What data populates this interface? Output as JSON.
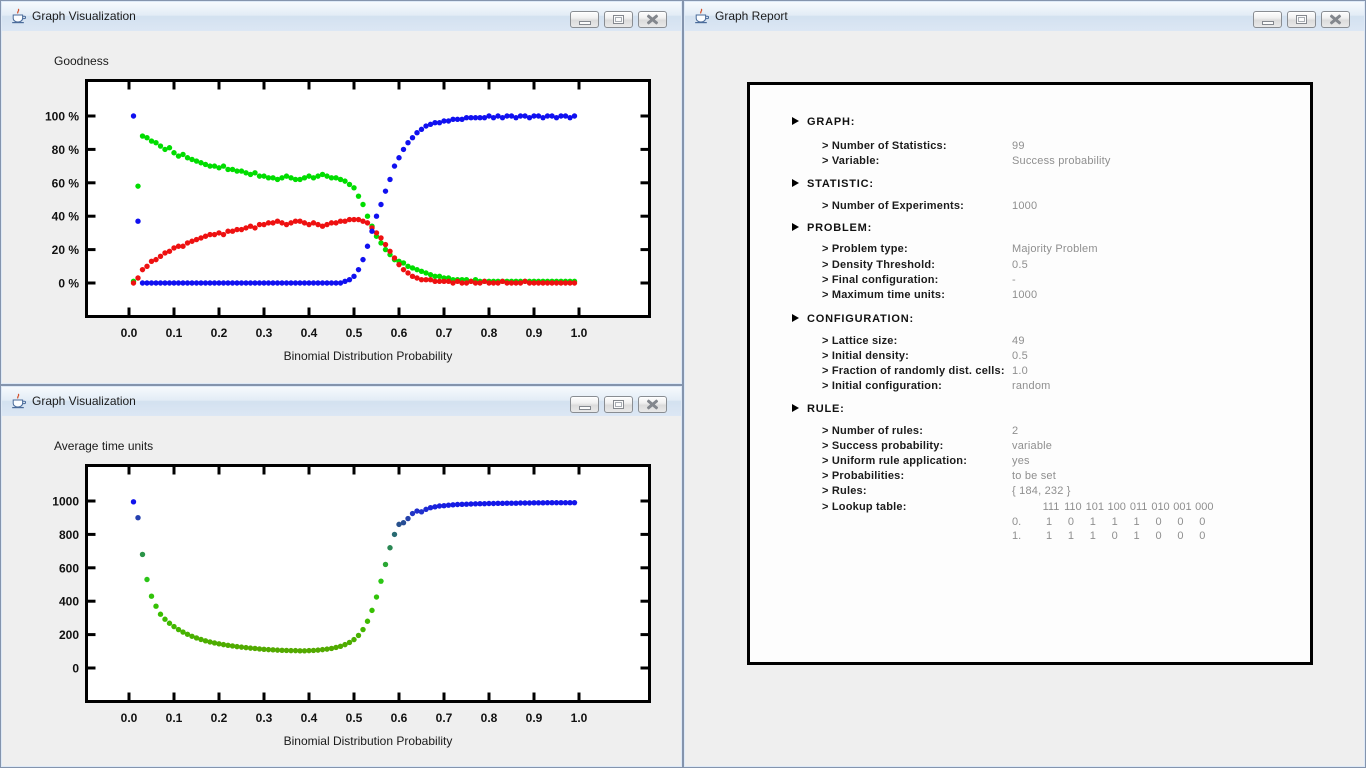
{
  "windows": {
    "viz1": {
      "title": "Graph Visualization"
    },
    "viz2": {
      "title": "Graph Visualization"
    },
    "report": {
      "title": "Graph Report"
    }
  },
  "icons": {
    "app": "java-coffee-cup-icon",
    "minimize": "minimize-icon",
    "maximize": "maximize-icon",
    "close": "close-icon"
  },
  "chart_data": [
    {
      "type": "scatter",
      "title": "Goodness",
      "xlabel": "Binomial Distribution Probability",
      "ylabel": "",
      "xlim": [
        0,
        1
      ],
      "ylim": [
        0,
        100
      ],
      "grid": false,
      "legend": "none",
      "x_ticks": [
        "0.0",
        "0.1",
        "0.2",
        "0.3",
        "0.4",
        "0.5",
        "0.6",
        "0.7",
        "0.8",
        "0.9",
        "1.0"
      ],
      "y_ticks": [
        "100 %",
        "80 %",
        "60 %",
        "40 %",
        "20 %",
        "0 %"
      ],
      "x": [
        0.01,
        0.02,
        0.03,
        0.04,
        0.05,
        0.06,
        0.07,
        0.08,
        0.09,
        0.1,
        0.11,
        0.12,
        0.13,
        0.14,
        0.15,
        0.16,
        0.17,
        0.18,
        0.19,
        0.2,
        0.21,
        0.22,
        0.23,
        0.24,
        0.25,
        0.26,
        0.27,
        0.28,
        0.29,
        0.3,
        0.31,
        0.32,
        0.33,
        0.34,
        0.35,
        0.36,
        0.37,
        0.38,
        0.39,
        0.4,
        0.41,
        0.42,
        0.43,
        0.44,
        0.45,
        0.46,
        0.47,
        0.48,
        0.49,
        0.5,
        0.51,
        0.52,
        0.53,
        0.54,
        0.55,
        0.56,
        0.57,
        0.58,
        0.59,
        0.6,
        0.61,
        0.62,
        0.63,
        0.64,
        0.65,
        0.66,
        0.67,
        0.68,
        0.69,
        0.7,
        0.71,
        0.72,
        0.73,
        0.74,
        0.75,
        0.76,
        0.77,
        0.78,
        0.79,
        0.8,
        0.81,
        0.82,
        0.83,
        0.84,
        0.85,
        0.86,
        0.87,
        0.88,
        0.89,
        0.9,
        0.91,
        0.92,
        0.93,
        0.94,
        0.95,
        0.96,
        0.97,
        0.98,
        0.99
      ],
      "series": [
        {
          "name": "green",
          "color": "#00dd00",
          "y": [
            1,
            58,
            88,
            87,
            85,
            84,
            82,
            80,
            81,
            78,
            76,
            77,
            75,
            74,
            73,
            72,
            71,
            70,
            70,
            69,
            70,
            68,
            68,
            67,
            67,
            66,
            65,
            66,
            64,
            64,
            63,
            63,
            62,
            63,
            64,
            63,
            62,
            62,
            63,
            64,
            63,
            64,
            65,
            64,
            63,
            63,
            62,
            61,
            59,
            57,
            52,
            47,
            40,
            34,
            28,
            24,
            20,
            17,
            14,
            13,
            12,
            10,
            9,
            8,
            7,
            6,
            5,
            4,
            4,
            3,
            3,
            2,
            2,
            2,
            2,
            1,
            2,
            1,
            1,
            1,
            1,
            1,
            1,
            1,
            1,
            1,
            1,
            1,
            1,
            1,
            1,
            1,
            1,
            1,
            1,
            1,
            1,
            1,
            1
          ]
        },
        {
          "name": "red",
          "color": "#ee1111",
          "y": [
            0,
            3,
            8,
            10,
            13,
            14,
            16,
            18,
            19,
            21,
            22,
            22,
            24,
            25,
            26,
            27,
            28,
            29,
            29,
            30,
            29,
            31,
            31,
            32,
            32,
            33,
            34,
            33,
            35,
            35,
            36,
            36,
            37,
            36,
            35,
            36,
            37,
            37,
            36,
            35,
            36,
            35,
            34,
            35,
            36,
            36,
            37,
            37,
            38,
            38,
            38,
            37,
            36,
            33,
            30,
            27,
            23,
            19,
            15,
            11,
            8,
            6,
            4,
            3,
            2,
            2,
            2,
            1,
            1,
            1,
            1,
            0,
            1,
            0,
            0,
            1,
            0,
            0,
            1,
            0,
            0,
            0,
            1,
            0,
            0,
            0,
            0,
            1,
            0,
            0,
            0,
            0,
            0,
            0,
            0,
            0,
            0,
            0,
            0
          ]
        },
        {
          "name": "blue",
          "color": "#1010f0",
          "y": [
            100,
            37,
            0,
            0,
            0,
            0,
            0,
            0,
            0,
            0,
            0,
            0,
            0,
            0,
            0,
            0,
            0,
            0,
            0,
            0,
            0,
            0,
            0,
            0,
            0,
            0,
            0,
            0,
            0,
            0,
            0,
            0,
            0,
            0,
            0,
            0,
            0,
            0,
            0,
            0,
            0,
            0,
            0,
            0,
            0,
            0,
            0,
            1,
            2,
            4,
            8,
            14,
            22,
            31,
            40,
            47,
            55,
            62,
            70,
            75,
            80,
            84,
            87,
            90,
            92,
            94,
            95,
            96,
            96,
            97,
            97,
            98,
            98,
            98,
            99,
            99,
            99,
            99,
            99,
            100,
            99,
            100,
            99,
            100,
            100,
            99,
            100,
            100,
            99,
            100,
            100,
            99,
            100,
            100,
            99,
            100,
            100,
            99,
            100
          ]
        }
      ]
    },
    {
      "type": "scatter",
      "title": "Average time units",
      "xlabel": "Binomial Distribution Probability",
      "ylabel": "",
      "xlim": [
        0,
        1
      ],
      "ylim": [
        0,
        1000
      ],
      "grid": false,
      "legend": "none",
      "x_ticks": [
        "0.0",
        "0.1",
        "0.2",
        "0.3",
        "0.4",
        "0.5",
        "0.6",
        "0.7",
        "0.8",
        "0.9",
        "1.0"
      ],
      "y_ticks": [
        "1000",
        "800",
        "600",
        "400",
        "200",
        "0"
      ],
      "color_stops": [
        [
          0,
          "#61a000"
        ],
        [
          160,
          "#4cae00"
        ],
        [
          330,
          "#38bf00"
        ],
        [
          520,
          "#2bc714"
        ],
        [
          640,
          "#2aa13a"
        ],
        [
          760,
          "#2a7a60"
        ],
        [
          860,
          "#28518d"
        ],
        [
          930,
          "#2233c8"
        ],
        [
          1000,
          "#1010f0"
        ]
      ],
      "x": [
        0.01,
        0.02,
        0.03,
        0.04,
        0.05,
        0.06,
        0.07,
        0.08,
        0.09,
        0.1,
        0.11,
        0.12,
        0.13,
        0.14,
        0.15,
        0.16,
        0.17,
        0.18,
        0.19,
        0.2,
        0.21,
        0.22,
        0.23,
        0.24,
        0.25,
        0.26,
        0.27,
        0.28,
        0.29,
        0.3,
        0.31,
        0.32,
        0.33,
        0.34,
        0.35,
        0.36,
        0.37,
        0.38,
        0.39,
        0.4,
        0.41,
        0.42,
        0.43,
        0.44,
        0.45,
        0.46,
        0.47,
        0.48,
        0.49,
        0.5,
        0.51,
        0.52,
        0.53,
        0.54,
        0.55,
        0.56,
        0.57,
        0.58,
        0.59,
        0.6,
        0.61,
        0.62,
        0.63,
        0.64,
        0.65,
        0.66,
        0.67,
        0.68,
        0.69,
        0.7,
        0.71,
        0.72,
        0.73,
        0.74,
        0.75,
        0.76,
        0.77,
        0.78,
        0.79,
        0.8,
        0.81,
        0.82,
        0.83,
        0.84,
        0.85,
        0.86,
        0.87,
        0.88,
        0.89,
        0.9,
        0.91,
        0.92,
        0.93,
        0.94,
        0.95,
        0.96,
        0.97,
        0.98,
        0.99
      ],
      "series": [
        {
          "name": "average-time-units",
          "color": "gradient",
          "y": [
            995,
            900,
            680,
            530,
            430,
            370,
            322,
            292,
            268,
            248,
            230,
            215,
            202,
            190,
            180,
            171,
            163,
            156,
            150,
            145,
            140,
            136,
            132,
            128,
            125,
            122,
            119,
            117,
            114,
            112,
            110,
            109,
            107,
            106,
            105,
            104,
            104,
            103,
            103,
            104,
            105,
            107,
            110,
            113,
            117,
            123,
            130,
            140,
            153,
            170,
            195,
            230,
            280,
            345,
            425,
            520,
            620,
            720,
            800,
            860,
            870,
            895,
            925,
            940,
            935,
            950,
            960,
            965,
            970,
            972,
            975,
            977,
            979,
            980,
            981,
            982,
            983,
            984,
            984,
            985,
            985,
            986,
            986,
            987,
            987,
            987,
            988,
            988,
            988,
            989,
            989,
            989,
            990,
            990,
            990,
            990,
            990,
            990,
            990
          ]
        }
      ]
    }
  ],
  "report": {
    "sections": [
      {
        "title": "GRAPH:",
        "items": [
          {
            "label": "> Number of Statistics:",
            "value": "99"
          },
          {
            "label": "> Variable:",
            "value": "Success probability"
          }
        ]
      },
      {
        "title": "STATISTIC:",
        "items": [
          {
            "label": "> Number of Experiments:",
            "value": "1000"
          }
        ]
      },
      {
        "title": "PROBLEM:",
        "items": [
          {
            "label": "> Problem type:",
            "value": "Majority Problem"
          },
          {
            "label": "> Density Threshold:",
            "value": "0.5"
          },
          {
            "label": "> Final configuration:",
            "value": "-"
          },
          {
            "label": "> Maximum time units:",
            "value": "1000"
          }
        ]
      },
      {
        "title": "CONFIGURATION:",
        "items": [
          {
            "label": "> Lattice size:",
            "value": "49"
          },
          {
            "label": "> Initial density:",
            "value": "0.5"
          },
          {
            "label": "> Fraction of randomly dist. cells:",
            "value": "1.0"
          },
          {
            "label": "> Initial configuration:",
            "value": "random"
          }
        ]
      },
      {
        "title": "RULE:",
        "items": [
          {
            "label": "> Number of rules:",
            "value": "2"
          },
          {
            "label": "> Success probability:",
            "value": "variable"
          },
          {
            "label": "> Uniform rule application:",
            "value": "yes"
          },
          {
            "label": "> Probabilities:",
            "value": "to be set"
          },
          {
            "label": "> Rules:",
            "value": "{ 184, 232 }"
          },
          {
            "label": "> Lookup table:",
            "value": "",
            "table": {
              "header": [
                "111",
                "110",
                "101",
                "100",
                "011",
                "010",
                "001",
                "000"
              ],
              "rows": [
                {
                  "label": "0.",
                  "cells": [
                    "1",
                    "0",
                    "1",
                    "1",
                    "1",
                    "0",
                    "0",
                    "0"
                  ]
                },
                {
                  "label": "1.",
                  "cells": [
                    "1",
                    "1",
                    "1",
                    "0",
                    "1",
                    "0",
                    "0",
                    "0"
                  ]
                }
              ]
            }
          }
        ]
      }
    ]
  }
}
